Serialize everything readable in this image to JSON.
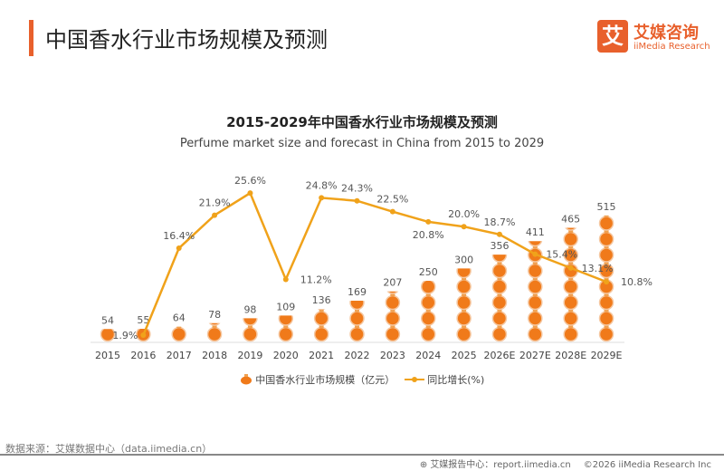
{
  "header": {
    "title": "中国香水行业市场规模及预测",
    "logo_cn": "艾媒咨询",
    "logo_en": "iiMedia Research",
    "logo_mark": "艾"
  },
  "chart_data": {
    "type": "bar+line",
    "title": "2015-2029年中国香水行业市场规模及预测",
    "subtitle": "Perfume market size and forecast in China from 2015 to 2029",
    "categories": [
      "2015",
      "2016",
      "2017",
      "2018",
      "2019",
      "2020",
      "2021",
      "2022",
      "2023",
      "2024",
      "2025",
      "2026E",
      "2027E",
      "2028E",
      "2029E"
    ],
    "series": [
      {
        "name": "中国香水行业市场规模（亿元）",
        "type": "pictogram-bar",
        "values": [
          54,
          55,
          64,
          78,
          98,
          109,
          136,
          169,
          207,
          250,
          300,
          356,
          411,
          465,
          515
        ],
        "color": "#f07a1a"
      },
      {
        "name": "同比增长(%)",
        "type": "line",
        "values": [
          null,
          1.9,
          16.4,
          21.9,
          25.6,
          11.2,
          24.8,
          24.3,
          22.5,
          20.8,
          20.0,
          18.7,
          15.4,
          13.1,
          10.8
        ],
        "labels": [
          "",
          "1.9%",
          "16.4%",
          "21.9%",
          "25.6%",
          "11.2%",
          "24.8%",
          "24.3%",
          "22.5%",
          "20.8%",
          "20.0%",
          "18.7%",
          "15.4%",
          "13.1%",
          "10.8%"
        ],
        "color": "#f0a21a"
      }
    ],
    "legend": "bottom-center",
    "grid": false
  },
  "footer": {
    "source": "数据来源：艾媒数据中心（data.iimedia.cn）",
    "report": "艾媒报告中心：report.iimedia.cn",
    "copyright": "©2026  iiMedia Research  Inc"
  }
}
